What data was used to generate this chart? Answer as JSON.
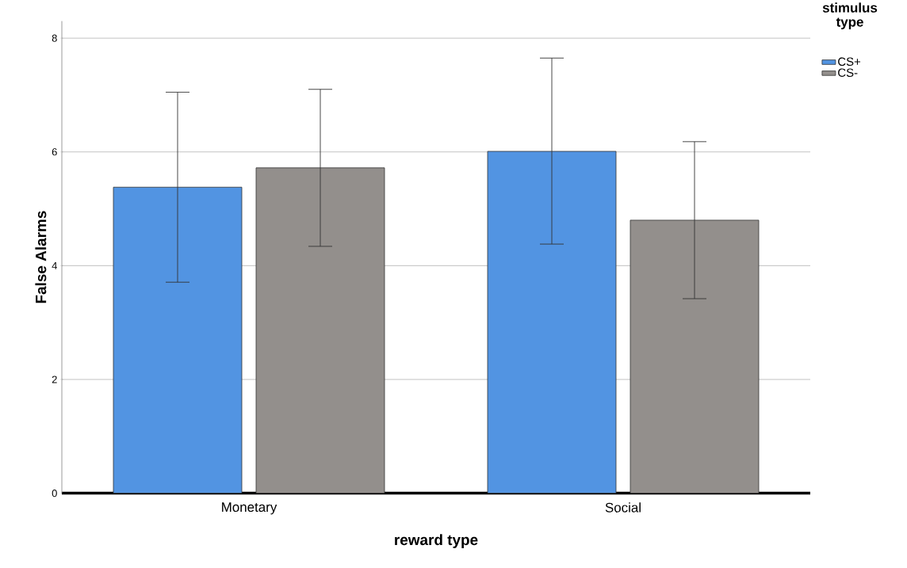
{
  "chart_data": {
    "type": "bar",
    "xlabel": "reward type",
    "ylabel": "False Alarms",
    "legend_title": "stimulus type",
    "categories": [
      "Monetary",
      "Social"
    ],
    "series": [
      {
        "name": "CS+",
        "color": "#5294e2",
        "values": [
          5.38,
          6.01
        ],
        "errors": [
          [
            3.71,
            7.05
          ],
          [
            4.38,
            7.65
          ]
        ]
      },
      {
        "name": "CS-",
        "color": "#938f8c",
        "values": [
          5.72,
          4.8
        ],
        "errors": [
          [
            4.34,
            7.1
          ],
          [
            3.42,
            6.18
          ]
        ]
      }
    ],
    "ylim": [
      0,
      8.3
    ],
    "yticks": [
      0,
      2,
      4,
      6,
      8
    ],
    "grid": "y",
    "legend": "top right"
  }
}
